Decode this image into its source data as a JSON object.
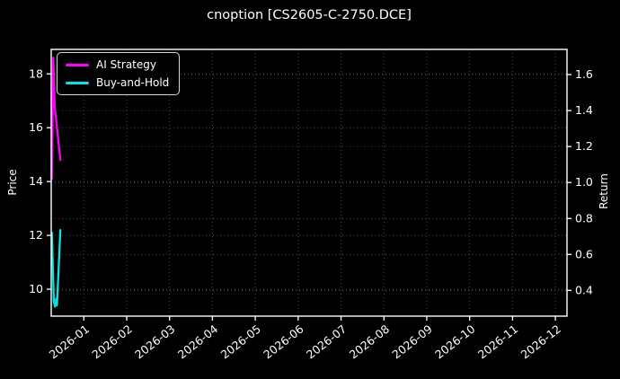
{
  "chart_data": {
    "type": "line",
    "title": "cnoption [CS2605-C-2750.DCE]",
    "background_color": "#000000",
    "text_color": "#ffffff",
    "grid_color": "#474747",
    "spine_color": "#ffffff",
    "x_axis": {
      "label": "",
      "tick_labels": [
        "2026-01",
        "2026-02",
        "2026-03",
        "2026-04",
        "2026-05",
        "2026-06",
        "2026-07",
        "2026-08",
        "2026-09",
        "2026-10",
        "2026-11",
        "2026-12"
      ],
      "tick_units": [
        0,
        1,
        2,
        3,
        4,
        5,
        6,
        7,
        8,
        9,
        10,
        11
      ],
      "range": [
        -0.76,
        11.27
      ],
      "tick_rotation_deg": 38,
      "grid": true
    },
    "y_left": {
      "label": "Price",
      "ticks": [
        10,
        12,
        14,
        16,
        18
      ],
      "range": [
        9.0,
        18.91
      ],
      "grid": true
    },
    "y_right": {
      "label": "Return",
      "ticks": [
        0.4,
        0.6,
        0.8,
        1.0,
        1.2,
        1.4,
        1.6
      ],
      "range": [
        0.257,
        1.74
      ],
      "grid": true
    },
    "series": [
      {
        "name": "AI Strategy",
        "color": "#ff00ff",
        "axis": "left",
        "x": [
          -0.745,
          -0.712,
          -0.679,
          -0.547
        ],
        "y": [
          14.1,
          18.6,
          16.8,
          14.8
        ]
      },
      {
        "name": "Buy-and-Hold",
        "color": "#00e5e5",
        "axis": "left",
        "x": [
          -0.745,
          -0.7,
          -0.67,
          -0.645,
          -0.625,
          -0.547
        ],
        "y": [
          12.1,
          9.55,
          9.35,
          9.65,
          9.4,
          12.2
        ]
      }
    ],
    "legend": {
      "position": "upper left",
      "entries": [
        "AI Strategy",
        "Buy-and-Hold"
      ]
    }
  }
}
